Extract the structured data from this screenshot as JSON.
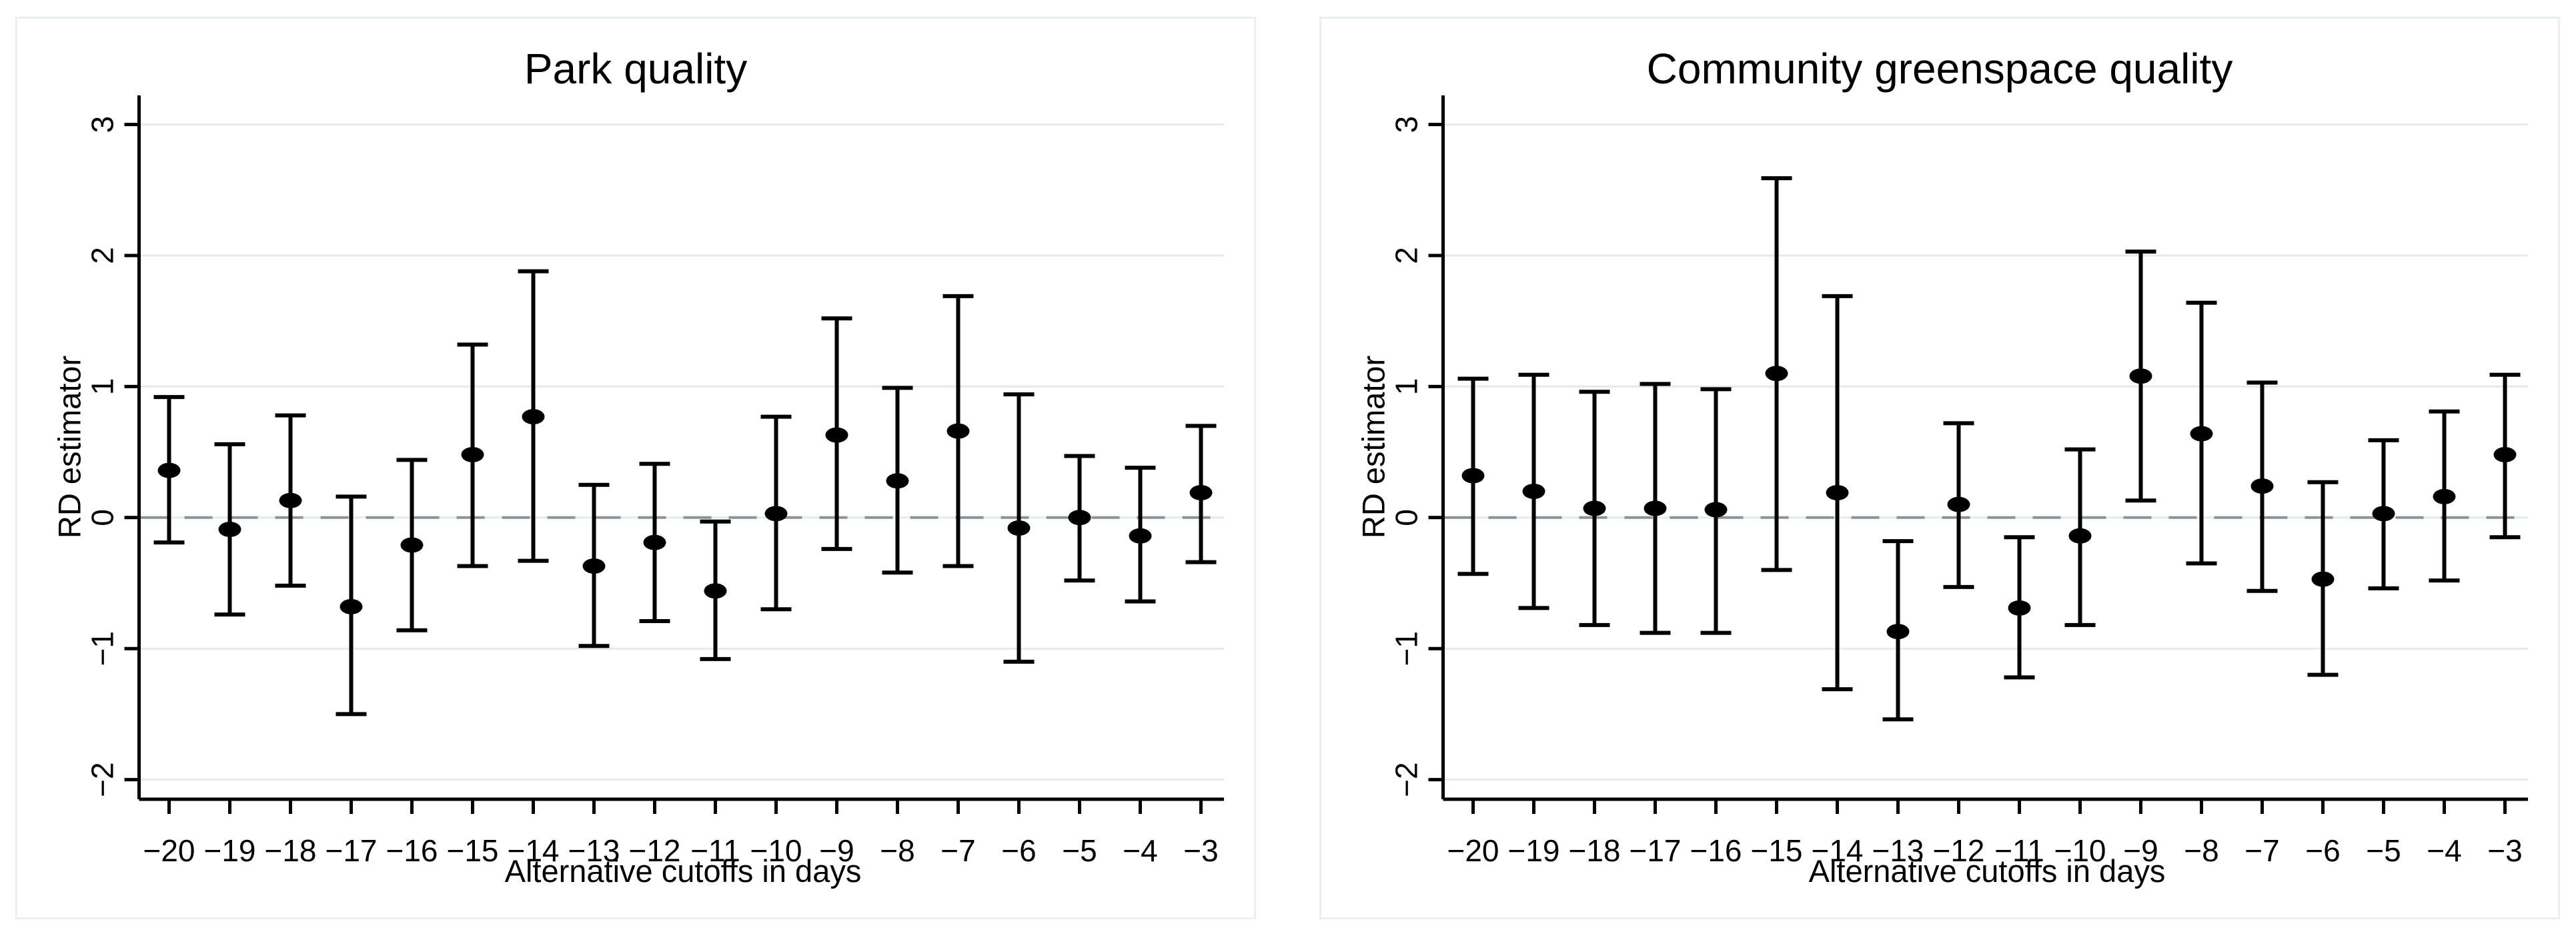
{
  "figure": {
    "colors": {
      "background": "#ffffff",
      "panel_border": "#e9eff3",
      "gridline": "#e1ecf0",
      "zero_line": "#8b9499",
      "axis": "#000000",
      "marker": "#000000",
      "text": "#000000"
    }
  },
  "chart_data": [
    {
      "type": "scatter",
      "title": "Park quality",
      "xlabel": "Alternative cutoffs in days",
      "ylabel": "RD estimator",
      "legend": "none",
      "grid": true,
      "zero_reference_line": 0,
      "ylim": [
        -2.15,
        3.22
      ],
      "yticks": [
        3,
        2,
        1,
        0,
        -1,
        -2
      ],
      "ytick_labels": [
        "3",
        "2",
        "1",
        "0",
        "−1",
        "−2"
      ],
      "categories": [
        "−20",
        "−19",
        "−18",
        "−17",
        "−16",
        "−15",
        "−14",
        "−13",
        "−12",
        "−11",
        "−10",
        "−9",
        "−8",
        "−7",
        "−6",
        "−5",
        "−4",
        "−3"
      ],
      "values": [
        0.36,
        -0.09,
        0.13,
        -0.68,
        -0.21,
        0.48,
        0.77,
        -0.37,
        -0.19,
        -0.56,
        0.03,
        0.63,
        0.28,
        0.66,
        -0.08,
        0.0,
        -0.14,
        0.19
      ],
      "ci_high": [
        0.92,
        0.56,
        0.78,
        0.16,
        0.44,
        1.32,
        1.88,
        0.25,
        0.41,
        -0.03,
        0.77,
        1.52,
        0.99,
        1.69,
        0.94,
        0.47,
        0.38,
        0.7
      ],
      "ci_low": [
        -0.19,
        -0.74,
        -0.52,
        -1.5,
        -0.86,
        -0.37,
        -0.33,
        -0.98,
        -0.79,
        -1.08,
        -0.7,
        -0.24,
        -0.42,
        -0.37,
        -1.1,
        -0.48,
        -0.64,
        -0.34
      ]
    },
    {
      "type": "scatter",
      "title": "Community greenspace quality",
      "xlabel": "Alternative cutoffs in days",
      "ylabel": "RD estimator",
      "legend": "none",
      "grid": true,
      "zero_reference_line": 0,
      "ylim": [
        -2.15,
        3.22
      ],
      "yticks": [
        3,
        2,
        1,
        0,
        -1,
        -2
      ],
      "ytick_labels": [
        "3",
        "2",
        "1",
        "0",
        "−1",
        "−2"
      ],
      "categories": [
        "−20",
        "−19",
        "−18",
        "−17",
        "−16",
        "−15",
        "−14",
        "−13",
        "−12",
        "−11",
        "−10",
        "−9",
        "−8",
        "−7",
        "−6",
        "−5",
        "−4",
        "−3"
      ],
      "values": [
        0.32,
        0.2,
        0.07,
        0.07,
        0.06,
        1.1,
        0.19,
        -0.87,
        0.1,
        -0.69,
        -0.14,
        1.08,
        0.64,
        0.24,
        -0.47,
        0.03,
        0.16,
        0.48
      ],
      "ci_high": [
        1.06,
        1.09,
        0.96,
        1.02,
        0.98,
        2.59,
        1.69,
        -0.18,
        0.72,
        -0.15,
        0.52,
        2.03,
        1.64,
        1.03,
        0.27,
        0.59,
        0.81,
        1.09
      ],
      "ci_low": [
        -0.43,
        -0.69,
        -0.82,
        -0.88,
        -0.88,
        -0.4,
        -1.31,
        -1.54,
        -0.53,
        -1.22,
        -0.82,
        0.13,
        -0.35,
        -0.56,
        -1.2,
        -0.54,
        -0.48,
        -0.15
      ]
    }
  ]
}
